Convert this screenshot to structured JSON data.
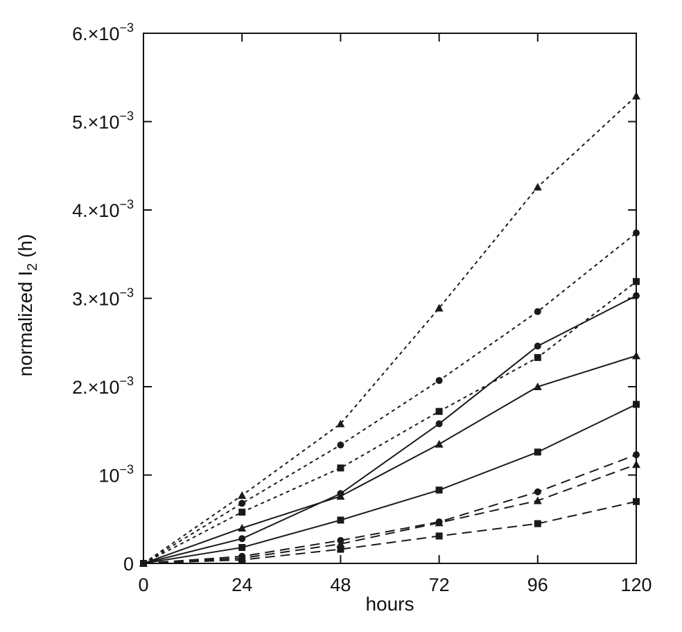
{
  "chart_data": {
    "type": "line",
    "title": "",
    "xlabel": "hours",
    "ylabel": "normalized I",
    "ylabel_subscript": "2",
    "ylabel_suffix": " (h)",
    "xlim": [
      0,
      120
    ],
    "ylim": [
      0,
      0.006
    ],
    "grid": false,
    "legend": "none",
    "x_ticks": [
      0,
      24,
      48,
      72,
      96,
      120
    ],
    "x_tick_labels": [
      "0",
      "24",
      "48",
      "72",
      "96",
      "120"
    ],
    "y_ticks": [
      0,
      0.001,
      0.002,
      0.003,
      0.004,
      0.005,
      0.006
    ],
    "y_tick_labels": [
      {
        "base": "0",
        "exp": ""
      },
      {
        "base": "10",
        "exp": "−3"
      },
      {
        "base": "2.×10",
        "exp": "−3"
      },
      {
        "base": "3.×10",
        "exp": "−3"
      },
      {
        "base": "4.×10",
        "exp": "−3"
      },
      {
        "base": "5.×10",
        "exp": "−3"
      },
      {
        "base": "6.×10",
        "exp": "−3"
      }
    ],
    "x": [
      0,
      24,
      48,
      72,
      96,
      120
    ],
    "series": [
      {
        "style": "dotted",
        "marker": "triangle",
        "values": [
          0,
          0.00077,
          0.00158,
          0.00289,
          0.00426,
          0.00529
        ]
      },
      {
        "style": "dotted",
        "marker": "circle",
        "values": [
          0,
          0.00068,
          0.00134,
          0.00207,
          0.00285,
          0.00374
        ]
      },
      {
        "style": "dotted",
        "marker": "square",
        "values": [
          0,
          0.00058,
          0.00108,
          0.00172,
          0.00233,
          0.00319
        ]
      },
      {
        "style": "solid",
        "marker": "circle",
        "values": [
          0,
          0.00028,
          0.00079,
          0.00158,
          0.00246,
          0.00303
        ]
      },
      {
        "style": "solid",
        "marker": "triangle",
        "values": [
          0,
          0.0004,
          0.00076,
          0.00135,
          0.002,
          0.00235
        ]
      },
      {
        "style": "solid",
        "marker": "square",
        "values": [
          0,
          0.00018,
          0.00049,
          0.00083,
          0.00126,
          0.0018
        ]
      },
      {
        "style": "dashed",
        "marker": "circle",
        "values": [
          0,
          8e-05,
          0.00026,
          0.00047,
          0.00081,
          0.00123
        ]
      },
      {
        "style": "dashed",
        "marker": "triangle",
        "values": [
          0,
          6e-05,
          0.00022,
          0.00046,
          0.00071,
          0.00112
        ]
      },
      {
        "style": "dashed",
        "marker": "square",
        "values": [
          0,
          4e-05,
          0.00016,
          0.00031,
          0.00045,
          0.0007
        ]
      }
    ],
    "colors": {
      "line": "#1a1a1a",
      "axis": "#111111",
      "background": "#ffffff"
    }
  }
}
